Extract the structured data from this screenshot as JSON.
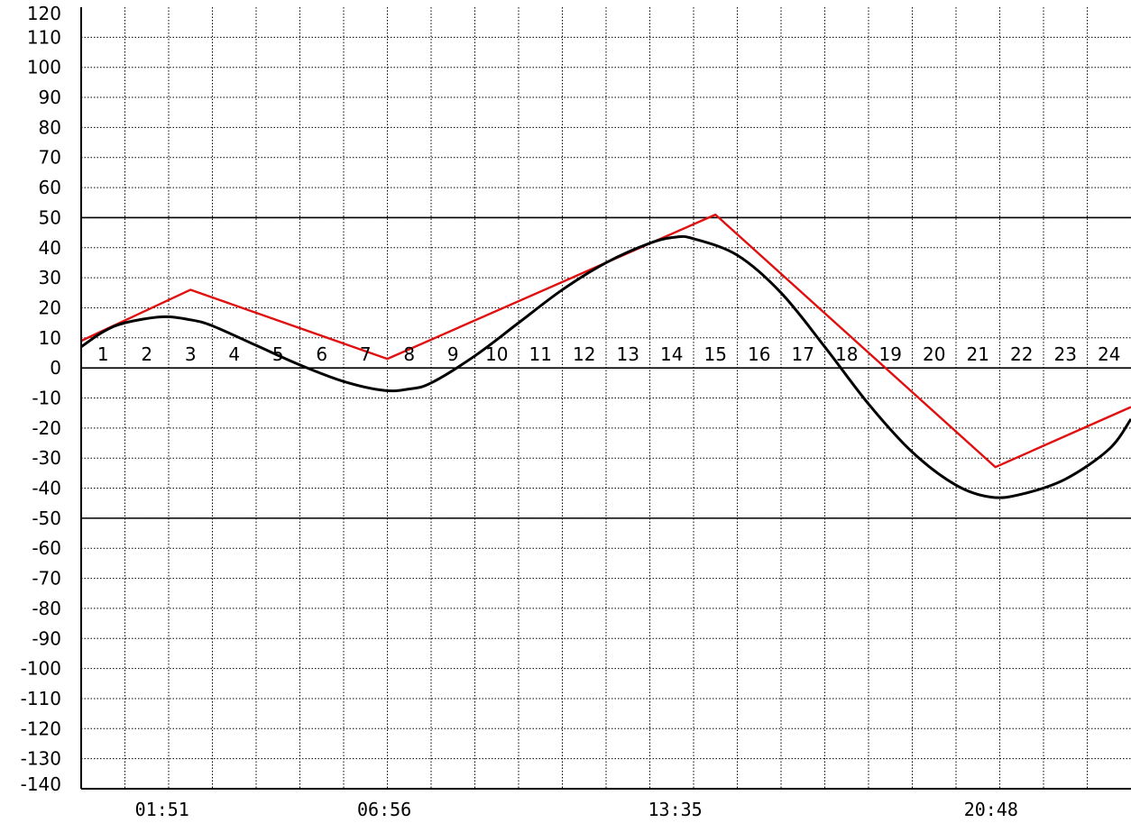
{
  "chart_data": {
    "type": "line",
    "title": "",
    "xlabel": "",
    "ylabel": "",
    "xlim": [
      0,
      24
    ],
    "ylim": [
      -140,
      120
    ],
    "y_ticks": [
      120,
      110,
      100,
      90,
      80,
      70,
      60,
      50,
      40,
      30,
      20,
      10,
      0,
      -10,
      -20,
      -30,
      -40,
      -50,
      -60,
      -70,
      -80,
      -90,
      -100,
      -110,
      -120,
      -130,
      -140
    ],
    "y_tick_labels": [
      "120",
      "110",
      "100",
      "90",
      "80",
      "70",
      "60",
      "50",
      "40",
      "30",
      "20",
      "10",
      "0",
      "-10",
      "-20",
      "-30",
      "-40",
      "-50",
      "-60",
      "-70",
      "-80",
      "-90",
      "-100",
      "-110",
      "-120",
      "-130",
      "-140"
    ],
    "hour_labels": [
      "1",
      "2",
      "3",
      "4",
      "5",
      "6",
      "7",
      "8",
      "9",
      "10",
      "11",
      "12",
      "13",
      "14",
      "15",
      "16",
      "17",
      "18",
      "19",
      "20",
      "21",
      "22",
      "23",
      "24"
    ],
    "reference_lines": [
      50,
      0,
      -50
    ],
    "grid": true,
    "extreme_time_labels": [
      {
        "text": "01:51",
        "hour": 1.85
      },
      {
        "text": "06:56",
        "hour": 6.93
      },
      {
        "text": "13:35",
        "hour": 13.58
      },
      {
        "text": "20:48",
        "hour": 20.8
      }
    ],
    "series": [
      {
        "color": "#e01010",
        "style": "polyline",
        "points": [
          [
            0,
            9
          ],
          [
            2.5,
            26
          ],
          [
            7,
            3
          ],
          [
            14.5,
            51
          ],
          [
            20.9,
            -33
          ],
          [
            24,
            -13
          ]
        ]
      },
      {
        "color": "#000000",
        "style": "curve",
        "points": [
          [
            0,
            7
          ],
          [
            0.5,
            12
          ],
          [
            1,
            15
          ],
          [
            1.85,
            17
          ],
          [
            2.5,
            16
          ],
          [
            3,
            14
          ],
          [
            4,
            7.5
          ],
          [
            5,
            1
          ],
          [
            6,
            -4.5
          ],
          [
            6.93,
            -7.5
          ],
          [
            7.5,
            -7
          ],
          [
            8,
            -5
          ],
          [
            9,
            4
          ],
          [
            10,
            15
          ],
          [
            11,
            26
          ],
          [
            12,
            35
          ],
          [
            13,
            41.5
          ],
          [
            13.58,
            43.5
          ],
          [
            14,
            43
          ],
          [
            15,
            37.5
          ],
          [
            16,
            25
          ],
          [
            17,
            7
          ],
          [
            18,
            -12
          ],
          [
            19,
            -28
          ],
          [
            20,
            -39
          ],
          [
            20.8,
            -43
          ],
          [
            21.5,
            -42
          ],
          [
            22.5,
            -37
          ],
          [
            23.5,
            -27
          ],
          [
            24,
            -17
          ]
        ]
      }
    ]
  }
}
